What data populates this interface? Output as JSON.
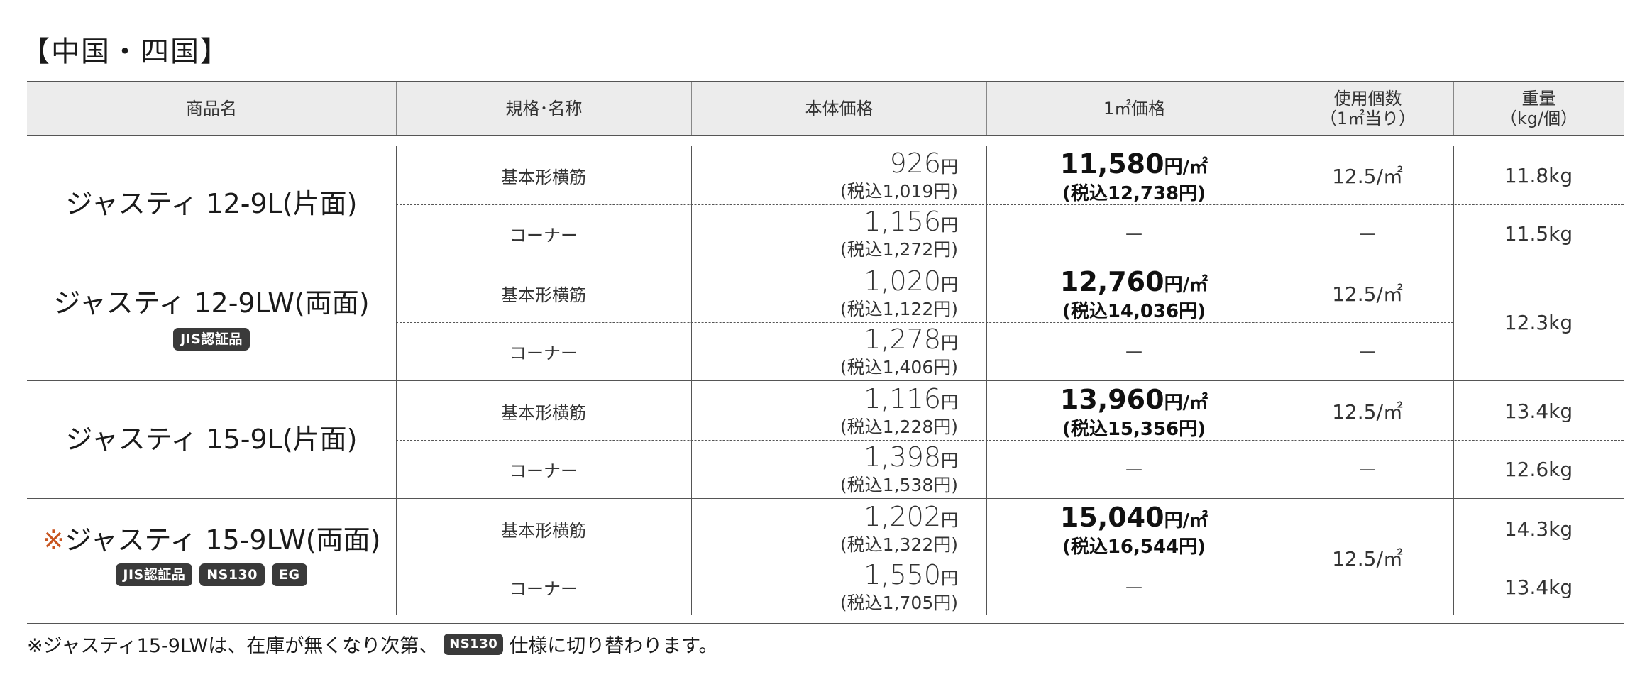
{
  "title": "【中国・四国】",
  "headers": {
    "name": "商品名",
    "spec": "規格･名称",
    "price": "本体価格",
    "sqm_price": "1㎡価格",
    "usage": "使用個数\n（1㎡当り）",
    "weight": "重量\n（kg/個）"
  },
  "products": [
    {
      "name": "ジャスティ 12-9L(片面)",
      "rows": [
        {
          "spec": "基本形横筋",
          "price": "926",
          "price_unit": "円",
          "tax": "(税込1,019円)",
          "sqm": "11,580",
          "sqm_unit": "円/㎡",
          "sqm_tax": "(税込12,738円)",
          "usage": "12.5/㎡",
          "weight": "11.8kg"
        },
        {
          "spec": "コーナー",
          "price": "1,156",
          "price_unit": "円",
          "tax": "(税込1,272円)",
          "sqm_dash": "—",
          "usage_dash": "—",
          "weight": "11.5kg"
        }
      ]
    },
    {
      "name": "ジャスティ 12-9LW(両面)",
      "badges": [
        "JIS認証品"
      ],
      "weight_merged": "12.3kg",
      "rows": [
        {
          "spec": "基本形横筋",
          "price": "1,020",
          "price_unit": "円",
          "tax": "(税込1,122円)",
          "sqm": "12,760",
          "sqm_unit": "円/㎡",
          "sqm_tax": "(税込14,036円)",
          "usage": "12.5/㎡"
        },
        {
          "spec": "コーナー",
          "price": "1,278",
          "price_unit": "円",
          "tax": "(税込1,406円)",
          "sqm_dash": "—",
          "usage_dash": "—"
        }
      ]
    },
    {
      "name": "ジャスティ 15-9L(片面)",
      "rows": [
        {
          "spec": "基本形横筋",
          "price": "1,116",
          "price_unit": "円",
          "tax": "(税込1,228円)",
          "sqm": "13,960",
          "sqm_unit": "円/㎡",
          "sqm_tax": "(税込15,356円)",
          "usage": "12.5/㎡",
          "weight": "13.4kg"
        },
        {
          "spec": "コーナー",
          "price": "1,398",
          "price_unit": "円",
          "tax": "(税込1,538円)",
          "sqm_dash": "—",
          "usage_dash": "—",
          "weight": "12.6kg"
        }
      ]
    },
    {
      "mark": "※",
      "name": "ジャスティ 15-9LW(両面)",
      "badges": [
        "JIS認証品",
        "NS130",
        "EG"
      ],
      "usage_merged": "12.5/㎡",
      "rows": [
        {
          "spec": "基本形横筋",
          "price": "1,202",
          "price_unit": "円",
          "tax": "(税込1,322円)",
          "sqm": "15,040",
          "sqm_unit": "円/㎡",
          "sqm_tax": "(税込16,544円)",
          "weight": "14.3kg"
        },
        {
          "spec": "コーナー",
          "price": "1,550",
          "price_unit": "円",
          "tax": "(税込1,705円)",
          "sqm_dash": "—",
          "weight": "13.4kg"
        }
      ]
    }
  ],
  "footnote": {
    "before": "※ジャスティ15-9LWは、在庫が無くなり次第、",
    "badge": "NS130",
    "after": " 仕様に切り替わります。"
  }
}
